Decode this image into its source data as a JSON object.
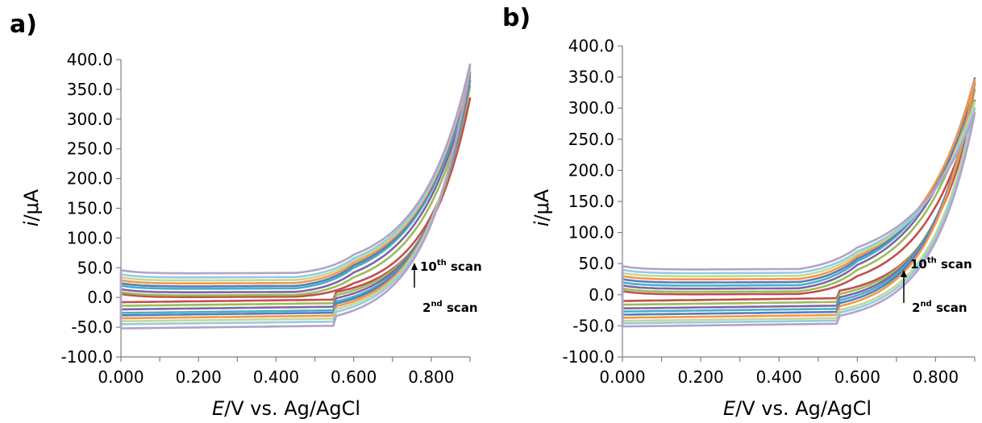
{
  "chart_data": [
    {
      "type": "line",
      "panel_label": "a)",
      "xlabel_italic": "E",
      "xlabel_rest": "/V vs. Ag/AgCl",
      "ylabel_italic": "i",
      "ylabel_rest": "/μA",
      "xlim": [
        0,
        0.9
      ],
      "ylim": [
        -100,
        400
      ],
      "x_ticks": [
        "0.000",
        "0.200",
        "0.400",
        "0.600",
        "0.800"
      ],
      "y_ticks": [
        "400.0",
        "350.0",
        "300.0",
        "250.0",
        "200.0",
        "150.0",
        "100.0",
        "50.0",
        "0.0",
        "-50.0",
        "-100.0"
      ],
      "annotation": {
        "top_num": "10",
        "top_sup": "th",
        "top_word": " scan",
        "bottom_num": "2",
        "bottom_sup": "nd",
        "bottom_word": " scan"
      },
      "series": [
        {
          "color": "#C0504D",
          "fwd_plateau": 0,
          "rev_plateau": -8,
          "at_0_6": 24,
          "x_peak": 0.9,
          "y_peak": 335,
          "cross": 0.7
        },
        {
          "color": "#9BBB59",
          "fwd_plateau": 3,
          "rev_plateau": -14,
          "at_0_6": 34,
          "x_peak": 0.9,
          "y_peak": 355,
          "cross": 0.7
        },
        {
          "color": "#8064A2",
          "fwd_plateau": 8,
          "rev_plateau": -20,
          "at_0_6": 42,
          "x_peak": 0.9,
          "y_peak": 365,
          "cross": 0.69
        },
        {
          "color": "#4BACC6",
          "fwd_plateau": 14,
          "rev_plateau": -26,
          "at_0_6": 50,
          "x_peak": 0.9,
          "y_peak": 372,
          "cross": 0.69
        },
        {
          "color": "#4F81BD",
          "fwd_plateau": 18,
          "rev_plateau": -30,
          "at_0_6": 54,
          "x_peak": 0.9,
          "y_peak": 378,
          "cross": 0.69
        },
        {
          "color": "#F79646",
          "fwd_plateau": 23,
          "rev_plateau": -35,
          "at_0_6": 58,
          "x_peak": 0.9,
          "y_peak": 384,
          "cross": 0.68
        },
        {
          "color": "#C3D69B",
          "fwd_plateau": 28,
          "rev_plateau": -40,
          "at_0_6": 62,
          "x_peak": 0.9,
          "y_peak": 388,
          "cross": 0.68
        },
        {
          "color": "#93CDDD",
          "fwd_plateau": 33,
          "rev_plateau": -45,
          "at_0_6": 66,
          "x_peak": 0.9,
          "y_peak": 390,
          "cross": 0.68
        },
        {
          "color": "#B3A2C7",
          "fwd_plateau": 40,
          "rev_plateau": -52,
          "at_0_6": 72,
          "x_peak": 0.9,
          "y_peak": 392,
          "cross": 0.68
        }
      ]
    },
    {
      "type": "line",
      "panel_label": "b)",
      "xlabel_italic": "E",
      "xlabel_rest": "/V vs. Ag/AgCl",
      "ylabel_italic": "i",
      "ylabel_rest": "/μA",
      "xlim": [
        0,
        0.9
      ],
      "ylim": [
        -100,
        400
      ],
      "x_ticks": [
        "0.000",
        "0.200",
        "0.400",
        "0.600",
        "0.800"
      ],
      "y_ticks": [
        "400.0",
        "350.0",
        "300.0",
        "250.0",
        "200.0",
        "150.0",
        "100.0",
        "50.0",
        "0.0",
        "-50.0",
        "-100.0"
      ],
      "annotation": {
        "top_num": "10",
        "top_sup": "th",
        "top_word": " scan",
        "bottom_num": "2",
        "bottom_sup": "nd",
        "bottom_word": " scan"
      },
      "series": [
        {
          "color": "#C0504D",
          "fwd_plateau": 0,
          "rev_plateau": -10,
          "at_0_6": 30,
          "x_peak": 0.9,
          "y_peak": 312,
          "cross": 0.7
        },
        {
          "color": "#9BBB59",
          "fwd_plateau": 4,
          "rev_plateau": -16,
          "at_0_6": 40,
          "x_peak": 0.9,
          "y_peak": 330,
          "cross": 0.7
        },
        {
          "color": "#8064A2",
          "fwd_plateau": 9,
          "rev_plateau": -22,
          "at_0_6": 48,
          "x_peak": 0.9,
          "y_peak": 340,
          "cross": 0.69
        },
        {
          "color": "#4BACC6",
          "fwd_plateau": 14,
          "rev_plateau": -27,
          "at_0_6": 54,
          "x_peak": 0.9,
          "y_peak": 345,
          "cross": 0.69
        },
        {
          "color": "#4F81BD",
          "fwd_plateau": 19,
          "rev_plateau": -32,
          "at_0_6": 58,
          "x_peak": 0.9,
          "y_peak": 348,
          "cross": 0.69
        },
        {
          "color": "#F79646",
          "fwd_plateau": 24,
          "rev_plateau": -37,
          "at_0_6": 62,
          "x_peak": 0.9,
          "y_peak": 346,
          "cross": 0.68
        },
        {
          "color": "#C3D69B",
          "fwd_plateau": 29,
          "rev_plateau": -42,
          "at_0_6": 66,
          "x_peak": 0.9,
          "y_peak": 310,
          "cross": 0.68
        },
        {
          "color": "#93CDDD",
          "fwd_plateau": 34,
          "rev_plateau": -46,
          "at_0_6": 70,
          "x_peak": 0.9,
          "y_peak": 300,
          "cross": 0.68
        },
        {
          "color": "#B3A2C7",
          "fwd_plateau": 40,
          "rev_plateau": -51,
          "at_0_6": 76,
          "x_peak": 0.9,
          "y_peak": 292,
          "cross": 0.68
        }
      ]
    }
  ]
}
